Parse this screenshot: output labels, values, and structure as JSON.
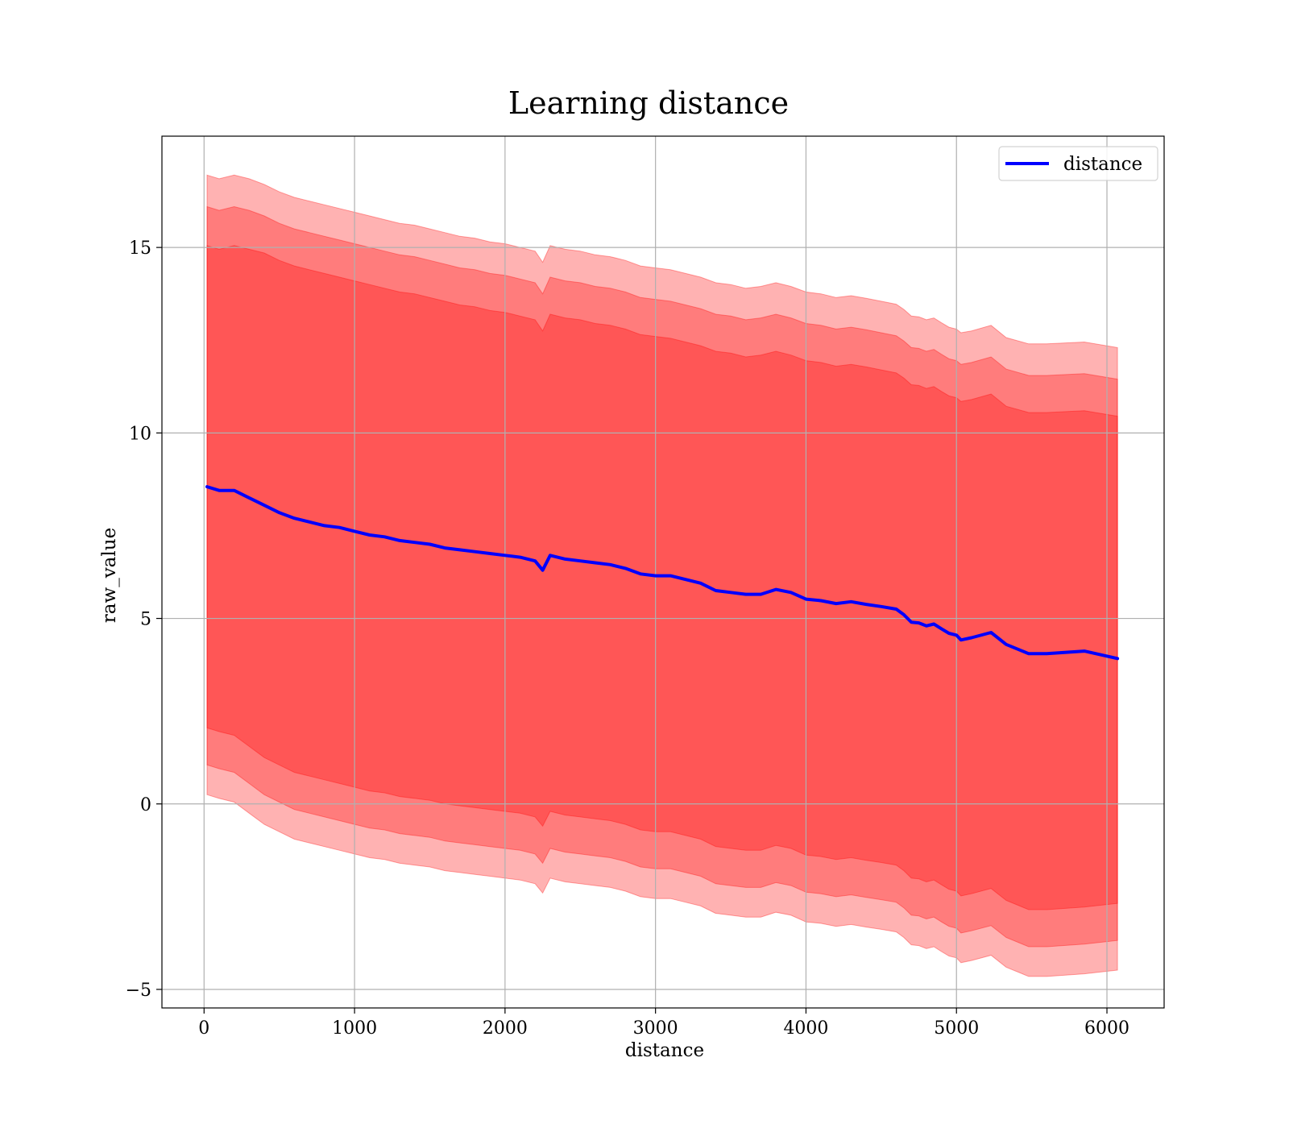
{
  "chart_data": {
    "type": "line",
    "title": "Learning distance",
    "xlabel": "distance",
    "ylabel": "raw_value",
    "xlim": [
      -280,
      6380
    ],
    "ylim": [
      -5.5,
      18
    ],
    "xticks": [
      0,
      1000,
      2000,
      3000,
      4000,
      5000,
      6000
    ],
    "xtick_labels": [
      "0",
      "1000",
      "2000",
      "3000",
      "4000",
      "5000",
      "6000"
    ],
    "yticks": [
      -5,
      0,
      5,
      10,
      15
    ],
    "ytick_labels": [
      "−5",
      "0",
      "5",
      "10",
      "15"
    ],
    "grid": true,
    "legend": {
      "placement": "top-right",
      "entries": [
        "distance"
      ]
    },
    "colors": {
      "line": "#0000ff",
      "band": "#ff0000",
      "grid": "#b0b0b0"
    },
    "series": [
      {
        "name": "distance",
        "x": [
          20,
          100,
          200,
          300,
          400,
          500,
          600,
          700,
          800,
          900,
          1000,
          1100,
          1200,
          1300,
          1400,
          1500,
          1600,
          1700,
          1800,
          1900,
          2000,
          2100,
          2200,
          2250,
          2300,
          2400,
          2500,
          2600,
          2700,
          2800,
          2900,
          3000,
          3100,
          3200,
          3300,
          3400,
          3500,
          3600,
          3700,
          3800,
          3900,
          4000,
          4100,
          4200,
          4300,
          4400,
          4500,
          4600,
          4650,
          4700,
          4750,
          4800,
          4850,
          4900,
          4950,
          5000,
          5030,
          5100,
          5230,
          5330,
          5480,
          5600,
          5850,
          6070
        ],
        "y": [
          8.55,
          8.45,
          8.45,
          8.25,
          8.05,
          7.85,
          7.7,
          7.6,
          7.5,
          7.45,
          7.35,
          7.25,
          7.2,
          7.1,
          7.05,
          7.0,
          6.9,
          6.85,
          6.8,
          6.75,
          6.7,
          6.65,
          6.55,
          6.3,
          6.7,
          6.6,
          6.55,
          6.5,
          6.45,
          6.35,
          6.2,
          6.15,
          6.15,
          6.05,
          5.95,
          5.75,
          5.7,
          5.65,
          5.65,
          5.78,
          5.7,
          5.52,
          5.48,
          5.4,
          5.45,
          5.38,
          5.32,
          5.25,
          5.1,
          4.9,
          4.88,
          4.8,
          4.85,
          4.72,
          4.6,
          4.55,
          4.42,
          4.48,
          4.62,
          4.3,
          4.05,
          4.05,
          4.12,
          3.92
        ]
      }
    ],
    "bands": [
      {
        "sigma": 1,
        "lower": [
          2.05,
          1.95,
          1.85,
          1.55,
          1.25,
          1.05,
          0.85,
          0.75,
          0.65,
          0.55,
          0.45,
          0.35,
          0.3,
          0.2,
          0.15,
          0.1,
          0.0,
          -0.05,
          -0.1,
          -0.15,
          -0.2,
          -0.25,
          -0.35,
          -0.6,
          -0.2,
          -0.3,
          -0.35,
          -0.4,
          -0.45,
          -0.55,
          -0.7,
          -0.75,
          -0.75,
          -0.85,
          -0.95,
          -1.15,
          -1.2,
          -1.25,
          -1.25,
          -1.12,
          -1.2,
          -1.38,
          -1.42,
          -1.5,
          -1.45,
          -1.52,
          -1.58,
          -1.65,
          -1.8,
          -2.0,
          -2.02,
          -2.1,
          -2.05,
          -2.18,
          -2.3,
          -2.35,
          -2.48,
          -2.42,
          -2.28,
          -2.6,
          -2.85,
          -2.85,
          -2.78,
          -2.68
        ],
        "upper": [
          15.05,
          14.95,
          15.05,
          14.95,
          14.85,
          14.65,
          14.5,
          14.4,
          14.3,
          14.2,
          14.1,
          14.0,
          13.9,
          13.8,
          13.75,
          13.65,
          13.55,
          13.45,
          13.4,
          13.3,
          13.25,
          13.15,
          13.05,
          12.75,
          13.2,
          13.1,
          13.05,
          12.95,
          12.9,
          12.8,
          12.65,
          12.6,
          12.55,
          12.45,
          12.35,
          12.2,
          12.15,
          12.05,
          12.1,
          12.2,
          12.1,
          11.95,
          11.9,
          11.8,
          11.85,
          11.78,
          11.7,
          11.62,
          11.48,
          11.3,
          11.28,
          11.2,
          11.25,
          11.12,
          11.0,
          10.95,
          10.85,
          10.9,
          11.05,
          10.72,
          10.55,
          10.55,
          10.6,
          10.45
        ]
      },
      {
        "sigma": 2,
        "lower": [
          1.05,
          0.95,
          0.85,
          0.55,
          0.25,
          0.05,
          -0.15,
          -0.25,
          -0.35,
          -0.45,
          -0.55,
          -0.65,
          -0.7,
          -0.8,
          -0.85,
          -0.9,
          -1.0,
          -1.05,
          -1.1,
          -1.15,
          -1.2,
          -1.25,
          -1.35,
          -1.6,
          -1.2,
          -1.3,
          -1.35,
          -1.4,
          -1.45,
          -1.55,
          -1.7,
          -1.75,
          -1.75,
          -1.85,
          -1.95,
          -2.15,
          -2.2,
          -2.25,
          -2.25,
          -2.12,
          -2.2,
          -2.38,
          -2.42,
          -2.5,
          -2.45,
          -2.52,
          -2.58,
          -2.65,
          -2.8,
          -3.0,
          -3.02,
          -3.1,
          -3.05,
          -3.18,
          -3.3,
          -3.35,
          -3.48,
          -3.42,
          -3.28,
          -3.6,
          -3.85,
          -3.85,
          -3.78,
          -3.68
        ],
        "upper": [
          16.1,
          16.0,
          16.1,
          16.0,
          15.85,
          15.65,
          15.5,
          15.4,
          15.3,
          15.2,
          15.1,
          15.0,
          14.9,
          14.8,
          14.75,
          14.65,
          14.55,
          14.45,
          14.4,
          14.3,
          14.25,
          14.15,
          14.05,
          13.75,
          14.2,
          14.1,
          14.05,
          13.95,
          13.9,
          13.8,
          13.65,
          13.6,
          13.55,
          13.45,
          13.35,
          13.2,
          13.15,
          13.05,
          13.1,
          13.2,
          13.1,
          12.95,
          12.9,
          12.8,
          12.85,
          12.78,
          12.7,
          12.62,
          12.48,
          12.3,
          12.28,
          12.2,
          12.25,
          12.12,
          12.0,
          11.95,
          11.85,
          11.9,
          12.05,
          11.72,
          11.55,
          11.55,
          11.6,
          11.45
        ]
      },
      {
        "sigma": 3,
        "lower": [
          0.25,
          0.15,
          0.05,
          -0.25,
          -0.55,
          -0.75,
          -0.95,
          -1.05,
          -1.15,
          -1.25,
          -1.35,
          -1.45,
          -1.5,
          -1.6,
          -1.65,
          -1.7,
          -1.8,
          -1.85,
          -1.9,
          -1.95,
          -2.0,
          -2.05,
          -2.15,
          -2.4,
          -2.0,
          -2.1,
          -2.15,
          -2.2,
          -2.25,
          -2.35,
          -2.5,
          -2.55,
          -2.55,
          -2.65,
          -2.75,
          -2.95,
          -3.0,
          -3.05,
          -3.05,
          -2.92,
          -3.0,
          -3.18,
          -3.22,
          -3.3,
          -3.25,
          -3.32,
          -3.38,
          -3.45,
          -3.6,
          -3.8,
          -3.82,
          -3.9,
          -3.85,
          -3.98,
          -4.1,
          -4.15,
          -4.28,
          -4.22,
          -4.08,
          -4.4,
          -4.65,
          -4.65,
          -4.58,
          -4.48
        ],
        "upper": [
          16.95,
          16.85,
          16.95,
          16.85,
          16.7,
          16.5,
          16.35,
          16.25,
          16.15,
          16.05,
          15.95,
          15.85,
          15.75,
          15.65,
          15.6,
          15.5,
          15.4,
          15.3,
          15.25,
          15.15,
          15.1,
          15.0,
          14.9,
          14.6,
          15.05,
          14.95,
          14.9,
          14.8,
          14.75,
          14.65,
          14.5,
          14.45,
          14.4,
          14.3,
          14.2,
          14.05,
          14.0,
          13.9,
          13.95,
          14.05,
          13.95,
          13.8,
          13.75,
          13.65,
          13.7,
          13.63,
          13.55,
          13.47,
          13.33,
          13.15,
          13.13,
          13.05,
          13.1,
          12.97,
          12.85,
          12.8,
          12.7,
          12.75,
          12.9,
          12.57,
          12.4,
          12.4,
          12.45,
          12.3
        ]
      }
    ]
  }
}
